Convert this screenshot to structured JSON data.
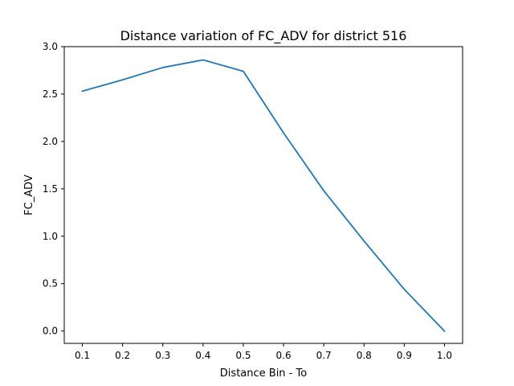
{
  "chart_data": {
    "type": "line",
    "title": "Distance variation of FC_ADV for district 516",
    "xlabel": "Distance Bin - To",
    "ylabel": "FC_ADV",
    "xlim": [
      0.055,
      1.045
    ],
    "ylim": [
      -0.13,
      3.0
    ],
    "x_ticks": [
      "0.1",
      "0.2",
      "0.3",
      "0.4",
      "0.5",
      "0.6",
      "0.7",
      "0.8",
      "0.9",
      "1.0"
    ],
    "y_ticks": [
      "0.0",
      "0.5",
      "1.0",
      "1.5",
      "2.0",
      "2.5",
      "3.0"
    ],
    "grid": false,
    "series": [
      {
        "color": "#1f77b4",
        "x": [
          0.1,
          0.2,
          0.3,
          0.4,
          0.5,
          0.6,
          0.7,
          0.8,
          0.9,
          1.0
        ],
        "y": [
          2.53,
          2.65,
          2.78,
          2.86,
          2.74,
          2.09,
          1.48,
          0.95,
          0.44,
          0.0
        ]
      }
    ]
  }
}
